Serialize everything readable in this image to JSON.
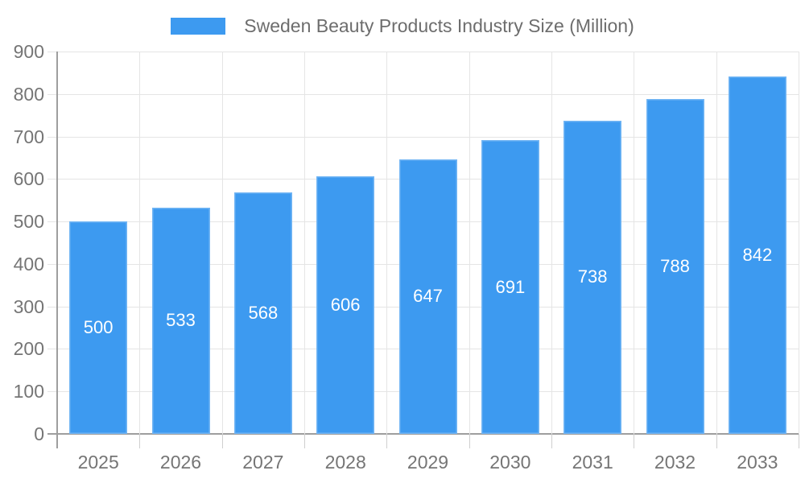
{
  "chart_data": {
    "type": "bar",
    "title": "",
    "categories": [
      "2025",
      "2026",
      "2027",
      "2028",
      "2029",
      "2030",
      "2031",
      "2032",
      "2033"
    ],
    "series": [
      {
        "name": "Sweden Beauty Products Industry Size (Million)",
        "values": [
          500,
          533,
          568,
          606,
          647,
          691,
          738,
          788,
          842
        ]
      }
    ],
    "xlabel": "",
    "ylabel": "",
    "ylim": [
      0,
      900
    ],
    "ytick_interval": 100,
    "ytick_labels": [
      "0",
      "100",
      "200",
      "300",
      "400",
      "500",
      "600",
      "700",
      "800",
      "900"
    ],
    "grid": "horizontal-and-vertical",
    "legend_position": "top-center",
    "bar_value_labels": "inside-center",
    "colors": {
      "bar": "#3D9AF0",
      "grid": "#e5e5e5",
      "axis": "#9e9e9e",
      "x_tick": "#cfcfcf",
      "axis_text": "#757575",
      "legend_text": "#6d6d6d",
      "bar_label_text": "#ffffff",
      "background": "#ffffff"
    }
  }
}
